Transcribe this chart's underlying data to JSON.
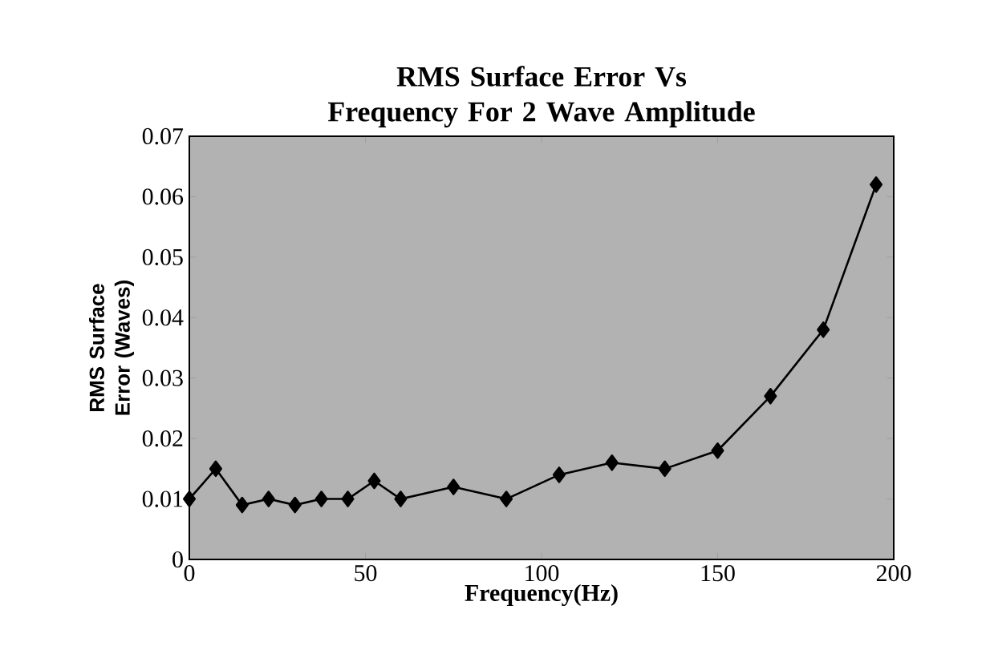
{
  "chart_data": {
    "type": "line",
    "title": "RMS Surface Error Vs Frequency For 2 Wave Amplitude",
    "xlabel": "Frequency(Hz)",
    "ylabel": "RMS Surface Error (Waves)",
    "x": [
      0,
      7.5,
      15,
      22.5,
      30,
      37.5,
      45,
      52.5,
      60,
      75,
      90,
      105,
      120,
      135,
      150,
      165,
      180,
      195
    ],
    "values": [
      0.01,
      0.015,
      0.009,
      0.01,
      0.009,
      0.01,
      0.01,
      0.013,
      0.01,
      0.012,
      0.01,
      0.014,
      0.016,
      0.015,
      0.018,
      0.027,
      0.038,
      0.062
    ],
    "color": "#000000",
    "marker": "diamond",
    "line_style": "solid",
    "grid": false,
    "xlim": [
      0,
      200
    ],
    "xticks": [
      0,
      50,
      100,
      150,
      200
    ],
    "ylim": [
      0,
      0.07
    ],
    "yticks": [
      0,
      0.01,
      0.02,
      0.03,
      0.04,
      0.05,
      0.06,
      0.07
    ]
  }
}
